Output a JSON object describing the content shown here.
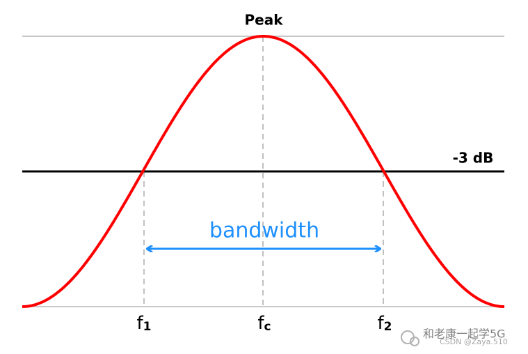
{
  "peak_label": "Peak",
  "threshold_label": "-3 dB",
  "bandwidth_label": "bandwidth",
  "frequencies": [
    {
      "main": "f",
      "sub": "1"
    },
    {
      "main": "f",
      "sub": "c"
    },
    {
      "main": "f",
      "sub": "2"
    }
  ],
  "watermark": {
    "channel": "和老康一起学5G",
    "author": "CSDN @Zaya.510"
  }
}
